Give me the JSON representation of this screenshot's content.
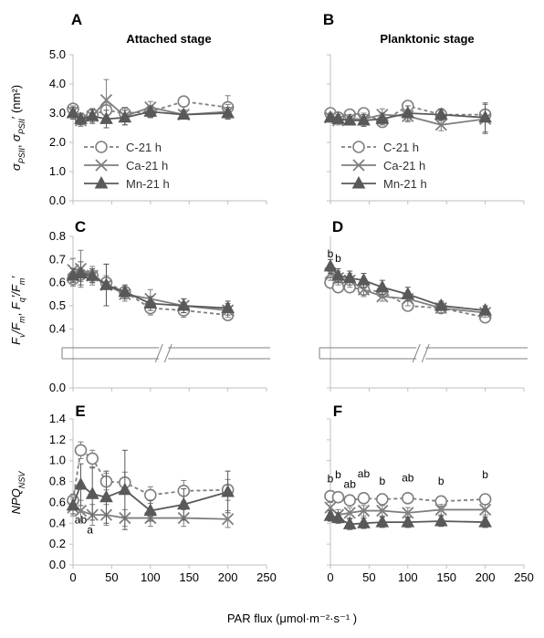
{
  "figure": {
    "stage_titles": {
      "attached": "Attached stage",
      "planktonic": "Planktonic stage"
    },
    "xlabel": "PAR flux (μmol·m⁻²·s⁻¹ )",
    "xlim": [
      0,
      250
    ],
    "xticks": [
      "0",
      "50",
      "100",
      "150",
      "200",
      "250"
    ],
    "legend": [
      "C-21 h",
      "Ca-21 h",
      "Mn-21 h"
    ],
    "colors": {
      "C": "#7f7f7f",
      "Ca": "#7f7f7f",
      "Mn": "#595959",
      "axis": "#bfbfbf"
    },
    "rows": [
      {
        "ylabel": "σPSII, σPSII′ (nm²)",
        "ylim": [
          0,
          5
        ],
        "yticks": [
          "0.0",
          "1.0",
          "2.0",
          "3.0",
          "4.0",
          "5.0"
        ]
      },
      {
        "ylabel": "Fv/Fm, Fq′/Fm′",
        "ylim_upper": [
          0.35,
          0.8
        ],
        "yticks_upper": [
          "0.4",
          "0.5",
          "0.6",
          "0.7",
          "0.8"
        ],
        "ytick_lower": "0.0"
      },
      {
        "ylabel": "NPQNSV",
        "ylim": [
          0,
          1.4
        ],
        "yticks": [
          "0.0",
          "0.2",
          "0.4",
          "0.6",
          "0.8",
          "1.0",
          "1.2",
          "1.4"
        ]
      }
    ]
  },
  "chart_data": [
    {
      "panel": "A",
      "type": "line",
      "title": "Attached stage",
      "x": [
        0,
        10,
        25,
        43,
        67,
        100,
        143,
        200
      ],
      "ylim": [
        0,
        5
      ],
      "series": [
        {
          "name": "C-21 h",
          "marker": "circle-open",
          "dash": true,
          "values": [
            3.15,
            2.8,
            2.95,
            3.1,
            3.0,
            3.05,
            3.4,
            3.2
          ],
          "err": [
            0.15,
            0.15,
            0.2,
            0.25,
            0.2,
            0.2,
            0.1,
            0.4
          ]
        },
        {
          "name": "Ca-21 h",
          "marker": "x",
          "dash": false,
          "values": [
            3.05,
            2.75,
            2.9,
            3.45,
            2.9,
            3.2,
            2.95,
            3.05
          ],
          "err": [
            0.2,
            0.2,
            0.2,
            0.7,
            0.3,
            0.2,
            0.15,
            0.25
          ]
        },
        {
          "name": "Mn-21 h",
          "marker": "triangle",
          "dash": false,
          "values": [
            3.0,
            2.8,
            2.9,
            2.8,
            2.85,
            3.05,
            2.95,
            3.0
          ],
          "err": [
            0.2,
            0.2,
            0.25,
            0.3,
            0.25,
            0.2,
            0.15,
            0.2
          ]
        }
      ]
    },
    {
      "panel": "B",
      "type": "line",
      "title": "Planktonic stage",
      "x": [
        0,
        10,
        25,
        43,
        67,
        100,
        143,
        200
      ],
      "ylim": [
        0,
        5
      ],
      "series": [
        {
          "name": "C-21 h",
          "marker": "circle-open",
          "dash": true,
          "values": [
            3.0,
            2.85,
            2.95,
            3.0,
            2.7,
            3.25,
            2.95,
            2.95
          ],
          "err": [
            0.1,
            0.1,
            0.1,
            0.1,
            0.1,
            0.1,
            0.1,
            0.15
          ]
        },
        {
          "name": "Ca-21 h",
          "marker": "x",
          "dash": false,
          "values": [
            2.85,
            2.75,
            2.8,
            2.8,
            2.95,
            2.9,
            2.6,
            2.8
          ],
          "err": [
            0.15,
            0.15,
            0.15,
            0.2,
            0.2,
            0.2,
            0.2,
            0.5
          ]
        },
        {
          "name": "Mn-21 h",
          "marker": "triangle",
          "dash": false,
          "values": [
            2.85,
            2.8,
            2.75,
            2.75,
            2.8,
            3.0,
            2.95,
            2.85
          ],
          "err": [
            0.15,
            0.15,
            0.15,
            0.2,
            0.2,
            0.25,
            0.2,
            0.5
          ]
        }
      ]
    },
    {
      "panel": "C",
      "type": "line",
      "x": [
        0,
        10,
        25,
        43,
        67,
        100,
        143,
        200
      ],
      "ylim": [
        0.35,
        0.8
      ],
      "series": [
        {
          "name": "C-21 h",
          "marker": "circle-open",
          "dash": true,
          "values": [
            0.615,
            0.635,
            0.63,
            0.6,
            0.56,
            0.49,
            0.48,
            0.46
          ],
          "err": [
            0.03,
            0.03,
            0.03,
            0.03,
            0.02,
            0.03,
            0.03,
            0.02
          ]
        },
        {
          "name": "Ca-21 h",
          "marker": "x",
          "dash": false,
          "values": [
            0.655,
            0.66,
            0.63,
            0.59,
            0.55,
            0.53,
            0.5,
            0.48
          ],
          "err": [
            0.05,
            0.08,
            0.04,
            0.09,
            0.03,
            0.04,
            0.03,
            0.03
          ]
        },
        {
          "name": "Mn-21 h",
          "marker": "triangle",
          "dash": false,
          "values": [
            0.63,
            0.64,
            0.63,
            0.59,
            0.56,
            0.51,
            0.5,
            0.49
          ],
          "err": [
            0.03,
            0.05,
            0.03,
            0.09,
            0.03,
            0.03,
            0.03,
            0.03
          ]
        }
      ]
    },
    {
      "panel": "D",
      "type": "line",
      "x": [
        0,
        10,
        25,
        43,
        67,
        100,
        143,
        200
      ],
      "ylim": [
        0.35,
        0.8
      ],
      "annotations": [
        {
          "text": "b",
          "x": 0,
          "y": 0.71
        },
        {
          "text": "b",
          "x": 10,
          "y": 0.69
        }
      ],
      "series": [
        {
          "name": "C-21 h",
          "marker": "circle-open",
          "dash": true,
          "values": [
            0.6,
            0.58,
            0.58,
            0.57,
            0.56,
            0.5,
            0.49,
            0.45
          ],
          "err": [
            0.02,
            0.02,
            0.02,
            0.02,
            0.02,
            0.02,
            0.02,
            0.02
          ]
        },
        {
          "name": "Ca-21 h",
          "marker": "x",
          "dash": false,
          "values": [
            0.64,
            0.62,
            0.61,
            0.57,
            0.54,
            0.53,
            0.49,
            0.47
          ],
          "err": [
            0.03,
            0.03,
            0.03,
            0.03,
            0.02,
            0.03,
            0.02,
            0.02
          ]
        },
        {
          "name": "Mn-21 h",
          "marker": "triangle",
          "dash": false,
          "values": [
            0.67,
            0.63,
            0.62,
            0.61,
            0.58,
            0.55,
            0.5,
            0.48
          ],
          "err": [
            0.03,
            0.03,
            0.03,
            0.03,
            0.03,
            0.03,
            0.02,
            0.02
          ]
        }
      ]
    },
    {
      "panel": "E",
      "type": "line",
      "x": [
        0,
        10,
        25,
        43,
        67,
        100,
        143,
        200
      ],
      "ylim": [
        0,
        1.4
      ],
      "annotations": [
        {
          "text": "ab",
          "x": 10,
          "y": 0.4
        },
        {
          "text": "a",
          "x": 22,
          "y": 0.3
        }
      ],
      "series": [
        {
          "name": "C-21 h",
          "marker": "circle-open",
          "dash": true,
          "values": [
            0.62,
            1.1,
            1.02,
            0.8,
            0.79,
            0.67,
            0.71,
            0.72
          ],
          "err": [
            0.06,
            0.08,
            0.08,
            0.08,
            0.1,
            0.08,
            0.1,
            0.1
          ]
        },
        {
          "name": "Ca-21 h",
          "marker": "x",
          "dash": false,
          "values": [
            0.55,
            0.52,
            0.48,
            0.48,
            0.45,
            0.45,
            0.45,
            0.44
          ],
          "err": [
            0.08,
            0.1,
            0.1,
            0.1,
            0.08,
            0.08,
            0.08,
            0.08
          ]
        },
        {
          "name": "Mn-21 h",
          "marker": "triangle",
          "dash": false,
          "values": [
            0.57,
            0.77,
            0.68,
            0.65,
            0.72,
            0.52,
            0.58,
            0.7
          ],
          "err": [
            0.08,
            0.2,
            0.25,
            0.25,
            0.38,
            0.1,
            0.15,
            0.2
          ]
        }
      ]
    },
    {
      "panel": "F",
      "type": "line",
      "x": [
        0,
        10,
        25,
        43,
        67,
        100,
        143,
        200
      ],
      "ylim": [
        0,
        1.4
      ],
      "annotations": [
        {
          "text": "b",
          "x": 0,
          "y": 0.79
        },
        {
          "text": "b",
          "x": 10,
          "y": 0.83
        },
        {
          "text": "ab",
          "x": 25,
          "y": 0.74
        },
        {
          "text": "ab",
          "x": 43,
          "y": 0.84
        },
        {
          "text": "b",
          "x": 67,
          "y": 0.77
        },
        {
          "text": "ab",
          "x": 100,
          "y": 0.8
        },
        {
          "text": "b",
          "x": 143,
          "y": 0.77
        },
        {
          "text": "b",
          "x": 200,
          "y": 0.83
        }
      ],
      "series": [
        {
          "name": "C-21 h",
          "marker": "circle-open",
          "dash": true,
          "values": [
            0.66,
            0.65,
            0.62,
            0.64,
            0.63,
            0.64,
            0.61,
            0.63
          ],
          "err": [
            0.05,
            0.05,
            0.05,
            0.05,
            0.05,
            0.05,
            0.05,
            0.05
          ]
        },
        {
          "name": "Ca-21 h",
          "marker": "x",
          "dash": false,
          "values": [
            0.55,
            0.48,
            0.5,
            0.52,
            0.52,
            0.5,
            0.53,
            0.53
          ],
          "err": [
            0.05,
            0.05,
            0.05,
            0.05,
            0.05,
            0.05,
            0.05,
            0.05
          ]
        },
        {
          "name": "Mn-21 h",
          "marker": "triangle",
          "dash": false,
          "values": [
            0.47,
            0.45,
            0.39,
            0.4,
            0.41,
            0.41,
            0.42,
            0.41
          ],
          "err": [
            0.05,
            0.05,
            0.05,
            0.05,
            0.05,
            0.05,
            0.05,
            0.05
          ]
        }
      ]
    }
  ]
}
